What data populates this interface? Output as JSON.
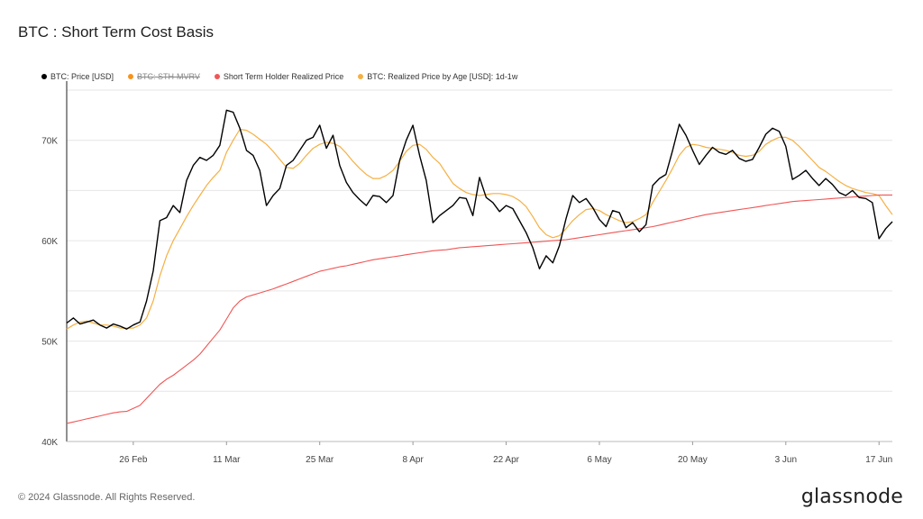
{
  "page": {
    "title": "BTC : Short Term Cost Basis",
    "footer": "© 2024 Glassnode. All Rights Reserved.",
    "brand": "glassnode"
  },
  "colors": {
    "price": "#000000",
    "sth_mvrv": "#f7931a",
    "sth_realized": "#f05656",
    "realized_1d1w": "#f5b042",
    "grid": "#e6e6e6"
  },
  "chart_data": {
    "type": "line",
    "title": "BTC : Short Term Cost Basis",
    "ylim": [
      40000,
      75000
    ],
    "y_ticks": [
      40000,
      50000,
      60000,
      70000
    ],
    "y_tick_labels": [
      "40K",
      "50K",
      "60K",
      "70K"
    ],
    "x_ticks": [
      "26 Feb",
      "11 Mar",
      "25 Mar",
      "8 Apr",
      "22 Apr",
      "6 May",
      "20 May",
      "3 Jun",
      "17 Jun"
    ],
    "x_tick_index": [
      10,
      24,
      38,
      52,
      66,
      80,
      94,
      108,
      122
    ],
    "legend": [
      {
        "name": "BTC: Price [USD]",
        "color": "#000000",
        "disabled": false
      },
      {
        "name": "BTC: STH-MVRV",
        "color": "#f7931a",
        "disabled": true
      },
      {
        "name": "Short Term Holder Realized Price",
        "color": "#f05656",
        "disabled": false
      },
      {
        "name": "BTC: Realized Price by Age [USD]: 1d-1w",
        "color": "#f5b042",
        "disabled": false
      }
    ],
    "x_start": "2024-02-16",
    "series": [
      {
        "name": "BTC: Price [USD]",
        "values": [
          51800,
          52300,
          51700,
          51900,
          52100,
          51600,
          51300,
          51700,
          51500,
          51200,
          51600,
          51900,
          54000,
          57000,
          62000,
          62300,
          63500,
          62800,
          66000,
          67500,
          68300,
          68000,
          68500,
          69500,
          73000,
          72800,
          71200,
          69000,
          68500,
          67000,
          63500,
          64500,
          65200,
          67500,
          68000,
          69000,
          70000,
          70300,
          71500,
          69200,
          70500,
          67500,
          65800,
          64800,
          64100,
          63500,
          64500,
          64400,
          63800,
          64500,
          68000,
          70000,
          71500,
          68500,
          66000,
          61800,
          62500,
          63000,
          63500,
          64300,
          64200,
          62500,
          66300,
          64300,
          63800,
          62900,
          63500,
          63200,
          62000,
          60800,
          59300,
          57200,
          58500,
          57800,
          59500,
          62200,
          64500,
          63800,
          64200,
          63300,
          62100,
          61400,
          63000,
          62800,
          61300,
          61800,
          60900,
          61600,
          65500,
          66200,
          66600,
          69000,
          71600,
          70500,
          69000,
          67600,
          68500,
          69300,
          68800,
          68600,
          69000,
          68200,
          67900,
          68100,
          69300,
          70600,
          71200,
          70900,
          69400,
          66100,
          66500,
          67000,
          66200,
          65500,
          66200,
          65600,
          64800,
          64500,
          65000,
          64300,
          64200,
          63800,
          60200,
          61200,
          61900
        ],
        "color": "#000000"
      },
      {
        "name": "Short Term Holder Realized Price",
        "values": [
          41800,
          41950,
          42100,
          42250,
          42400,
          42550,
          42700,
          42850,
          42950,
          43000,
          43300,
          43600,
          44300,
          45000,
          45700,
          46200,
          46600,
          47100,
          47600,
          48100,
          48700,
          49500,
          50300,
          51100,
          52200,
          53300,
          54000,
          54400,
          54600,
          54800,
          55000,
          55200,
          55450,
          55700,
          55950,
          56200,
          56450,
          56700,
          56950,
          57100,
          57250,
          57400,
          57500,
          57650,
          57800,
          57950,
          58100,
          58200,
          58300,
          58400,
          58500,
          58600,
          58700,
          58800,
          58900,
          59000,
          59050,
          59100,
          59200,
          59300,
          59350,
          59400,
          59450,
          59500,
          59550,
          59600,
          59650,
          59700,
          59750,
          59800,
          59850,
          59900,
          59950,
          60000,
          60050,
          60100,
          60200,
          60300,
          60400,
          60500,
          60600,
          60700,
          60800,
          60900,
          61000,
          61100,
          61200,
          61300,
          61400,
          61550,
          61700,
          61850,
          62000,
          62150,
          62300,
          62450,
          62600,
          62700,
          62800,
          62900,
          63000,
          63100,
          63200,
          63300,
          63400,
          63500,
          63600,
          63700,
          63800,
          63900,
          63950,
          64000,
          64050,
          64100,
          64150,
          64200,
          64250,
          64300,
          64350,
          64400,
          64450,
          64500,
          64550,
          64550,
          64550
        ],
        "color": "#f05656"
      },
      {
        "name": "BTC: Realized Price by Age [USD]: 1d-1w",
        "values": [
          51200,
          51600,
          51900,
          52000,
          51800,
          51600,
          51600,
          51500,
          51300,
          51300,
          51300,
          51600,
          52300,
          54000,
          56500,
          58500,
          60000,
          61200,
          62400,
          63500,
          64500,
          65500,
          66300,
          67000,
          68800,
          70000,
          71100,
          71000,
          70600,
          70100,
          69600,
          68900,
          68100,
          67300,
          67200,
          67700,
          68500,
          69200,
          69600,
          69800,
          69700,
          69400,
          68700,
          67900,
          67200,
          66600,
          66200,
          66200,
          66500,
          67000,
          67900,
          68900,
          69500,
          69600,
          69100,
          68300,
          67700,
          66700,
          65700,
          65200,
          64800,
          64600,
          64500,
          64600,
          64700,
          64700,
          64600,
          64400,
          64000,
          63400,
          62400,
          61300,
          60600,
          60300,
          60500,
          61200,
          62000,
          62600,
          63100,
          63200,
          63000,
          62600,
          62300,
          62000,
          61800,
          61900,
          62200,
          62600,
          63800,
          64900,
          66000,
          67200,
          68500,
          69300,
          69600,
          69500,
          69300,
          69200,
          69100,
          69000,
          68800,
          68500,
          68400,
          68500,
          68900,
          69600,
          70000,
          70300,
          70300,
          70000,
          69400,
          68700,
          68000,
          67300,
          66900,
          66400,
          65900,
          65500,
          65200,
          65000,
          64800,
          64700,
          64500,
          63500,
          62600
        ],
        "color": "#f5b042"
      }
    ]
  }
}
